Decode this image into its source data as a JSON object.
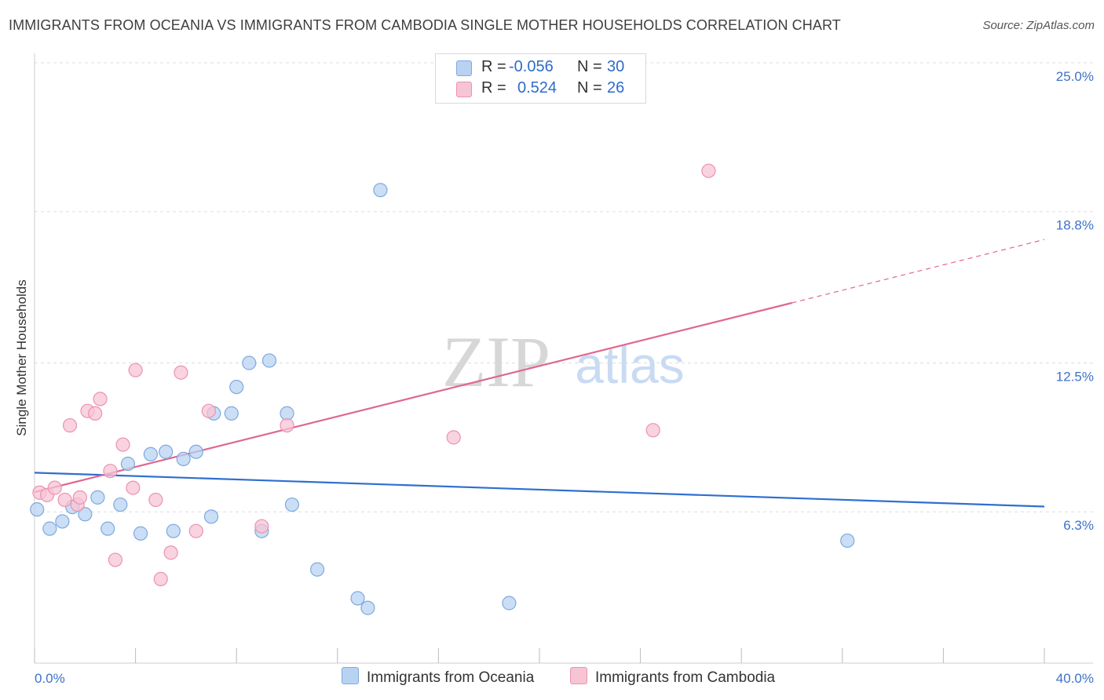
{
  "header": {
    "title": "IMMIGRANTS FROM OCEANIA VS IMMIGRANTS FROM CAMBODIA SINGLE MOTHER HOUSEHOLDS CORRELATION CHART",
    "source": "Source: ZipAtlas.com"
  },
  "watermark": {
    "zip": "ZIP",
    "atlas": "atlas"
  },
  "legend": {
    "rows": [
      {
        "r_label": "R =",
        "r_value": "-0.056",
        "n_label": "N =",
        "n_value": "30"
      },
      {
        "r_label": "R =",
        "r_value": "0.524",
        "n_label": "N =",
        "n_value": "26"
      }
    ]
  },
  "colors": {
    "oceania_fill": "#b8d3f2",
    "oceania_stroke": "#7ea9df",
    "oceania_line": "#2f6fcf",
    "cambodia_fill": "#f7c4d4",
    "cambodia_stroke": "#ea93b0",
    "cambodia_line": "#e06691",
    "axis_text": "#3d72c8",
    "grid": "#dddddd"
  },
  "chart_data": {
    "type": "scatter",
    "title": "IMMIGRANTS FROM OCEANIA VS IMMIGRANTS FROM CAMBODIA SINGLE MOTHER HOUSEHOLDS CORRELATION CHART",
    "xlabel": "",
    "ylabel": "Single Mother Households",
    "xlim": [
      0,
      40
    ],
    "ylim": [
      0,
      25.0
    ],
    "x_tick_labels": [
      "0.0%",
      "40.0%"
    ],
    "y_ticks": [
      6.3,
      12.5,
      18.8,
      25.0
    ],
    "y_tick_labels": [
      "6.3%",
      "12.5%",
      "18.8%",
      "25.0%"
    ],
    "grid": true,
    "legend_position": "bottom-center",
    "series": [
      {
        "name": "Immigrants from Oceania",
        "color": "#b8d3f2",
        "points": [
          [
            0.1,
            6.4
          ],
          [
            0.6,
            5.6
          ],
          [
            1.1,
            5.9
          ],
          [
            1.5,
            6.5
          ],
          [
            2.0,
            6.2
          ],
          [
            2.5,
            6.9
          ],
          [
            2.9,
            5.6
          ],
          [
            3.4,
            6.6
          ],
          [
            3.7,
            8.3
          ],
          [
            4.2,
            5.4
          ],
          [
            4.6,
            8.7
          ],
          [
            5.2,
            8.8
          ],
          [
            5.5,
            5.5
          ],
          [
            5.9,
            8.5
          ],
          [
            6.4,
            8.8
          ],
          [
            7.0,
            6.1
          ],
          [
            7.1,
            10.4
          ],
          [
            7.8,
            10.4
          ],
          [
            8.0,
            11.5
          ],
          [
            8.5,
            12.5
          ],
          [
            9.0,
            5.5
          ],
          [
            9.3,
            12.6
          ],
          [
            10.0,
            10.4
          ],
          [
            10.2,
            6.6
          ],
          [
            11.2,
            3.9
          ],
          [
            12.8,
            2.7
          ],
          [
            13.2,
            2.3
          ],
          [
            13.7,
            19.7
          ],
          [
            18.8,
            2.5
          ],
          [
            32.2,
            5.1
          ]
        ]
      },
      {
        "name": "Immigrants from Cambodia",
        "color": "#f7c4d4",
        "points": [
          [
            0.2,
            7.1
          ],
          [
            0.5,
            7.0
          ],
          [
            0.8,
            7.3
          ],
          [
            1.2,
            6.8
          ],
          [
            1.4,
            9.9
          ],
          [
            1.7,
            6.6
          ],
          [
            1.8,
            6.9
          ],
          [
            2.1,
            10.5
          ],
          [
            2.4,
            10.4
          ],
          [
            2.6,
            11.0
          ],
          [
            3.0,
            8.0
          ],
          [
            3.2,
            4.3
          ],
          [
            3.5,
            9.1
          ],
          [
            3.9,
            7.3
          ],
          [
            4.0,
            12.2
          ],
          [
            4.8,
            6.8
          ],
          [
            5.0,
            3.5
          ],
          [
            5.4,
            4.6
          ],
          [
            5.8,
            12.1
          ],
          [
            6.4,
            5.5
          ],
          [
            6.9,
            10.5
          ],
          [
            9.0,
            5.7
          ],
          [
            10.0,
            9.9
          ],
          [
            16.6,
            9.4
          ],
          [
            24.5,
            9.7
          ],
          [
            26.7,
            20.5
          ]
        ]
      }
    ],
    "trendlines": [
      {
        "series": "Immigrants from Oceania",
        "from": [
          0,
          7.93
        ],
        "to": [
          40,
          6.52
        ],
        "style": "solid"
      },
      {
        "series": "Immigrants from Cambodia",
        "from": [
          0,
          7.12
        ],
        "to": [
          30,
          15.0
        ],
        "style": "solid"
      },
      {
        "series": "Immigrants from Cambodia",
        "from": [
          30,
          15.0
        ],
        "to": [
          40,
          17.64
        ],
        "style": "dashed"
      }
    ]
  },
  "bottom_legend": {
    "oceania_label": "Immigrants from Oceania",
    "cambodia_label": "Immigrants from Cambodia"
  }
}
